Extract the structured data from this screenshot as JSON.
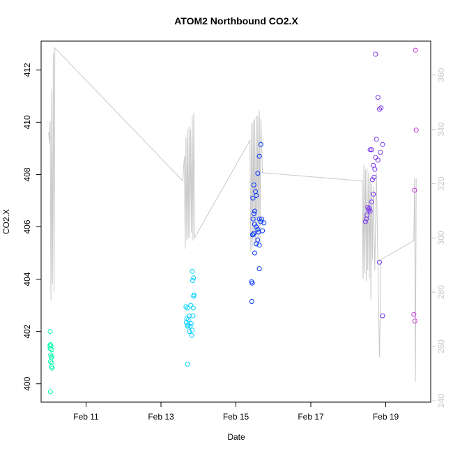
{
  "chart_data": {
    "type": "scatter",
    "title": "ATOM2 Northbound CO2.X",
    "xlabel": "Date",
    "ylabel": "CO2.X",
    "x_ticks": [
      "Feb 11",
      "Feb 13",
      "Feb 15",
      "Feb 17",
      "Feb 19"
    ],
    "y_ticks": [
      "400",
      "402",
      "404",
      "406",
      "408",
      "410",
      "412"
    ],
    "y2_ticks": [
      "240",
      "260",
      "280",
      "300",
      "320",
      "340",
      "360"
    ],
    "xlim": [
      "2013-02-09T19:12",
      "2013-02-20T04:48"
    ],
    "ylim": [
      399.3,
      413.1
    ],
    "y2lim": [
      239.5,
      372.5
    ],
    "right_axis_color": "#c8c8c8",
    "line_color": "#c8c8c8",
    "series": [
      {
        "color": "#00ffaa",
        "points": [
          [
            "2013-02-10T01:00",
            402.0
          ],
          [
            "2013-02-10T00:50",
            401.45
          ],
          [
            "2013-02-10T01:10",
            401.5
          ],
          [
            "2013-02-10T01:30",
            401.45
          ],
          [
            "2013-02-10T01:00",
            401.35
          ],
          [
            "2013-02-10T02:00",
            401.3
          ],
          [
            "2013-02-10T01:20",
            401.1
          ],
          [
            "2013-02-10T02:10",
            401.05
          ],
          [
            "2013-02-10T01:40",
            401.0
          ],
          [
            "2013-02-10T01:10",
            400.85
          ],
          [
            "2013-02-10T02:00",
            400.8
          ],
          [
            "2013-02-10T01:50",
            400.65
          ],
          [
            "2013-02-10T02:20",
            400.6
          ],
          [
            "2013-02-10T01:10",
            399.7
          ]
        ]
      },
      {
        "color": "#00d0ff",
        "points": [
          [
            "2013-02-13T16:00",
            402.95
          ],
          [
            "2013-02-13T17:00",
            402.9
          ],
          [
            "2013-02-13T19:00",
            403.0
          ],
          [
            "2013-02-13T16:30",
            402.5
          ],
          [
            "2013-02-13T17:30",
            402.45
          ],
          [
            "2013-02-13T18:00",
            402.6
          ],
          [
            "2013-02-13T16:10",
            402.35
          ],
          [
            "2013-02-13T17:20",
            402.25
          ],
          [
            "2013-02-13T18:40",
            402.2
          ],
          [
            "2013-02-13T19:20",
            402.3
          ],
          [
            "2013-02-13T17:00",
            402.2
          ],
          [
            "2013-02-13T20:30",
            402.6
          ],
          [
            "2013-02-13T18:10",
            402.0
          ],
          [
            "2013-02-13T19:40",
            401.85
          ],
          [
            "2013-02-13T20:00",
            402.05
          ],
          [
            "2013-02-13T20:40",
            402.9
          ],
          [
            "2013-02-13T20:50",
            403.35
          ],
          [
            "2013-02-13T21:10",
            403.4
          ],
          [
            "2013-02-13T20:20",
            403.95
          ],
          [
            "2013-02-13T20:00",
            404.3
          ],
          [
            "2013-02-13T20:50",
            404.05
          ],
          [
            "2013-02-13T17:00",
            400.75
          ]
        ]
      },
      {
        "color": "#0033ff",
        "points": [
          [
            "2013-02-15T10:00",
            403.9
          ],
          [
            "2013-02-15T10:30",
            403.85
          ],
          [
            "2013-02-15T10:10",
            403.15
          ],
          [
            "2013-02-15T11:00",
            405.7
          ],
          [
            "2013-02-15T11:30",
            405.75
          ],
          [
            "2013-02-15T10:40",
            405.7
          ],
          [
            "2013-02-15T12:00",
            405.0
          ],
          [
            "2013-02-15T13:00",
            405.35
          ],
          [
            "2013-02-15T14:00",
            405.5
          ],
          [
            "2013-02-15T15:00",
            405.3
          ],
          [
            "2013-02-15T11:00",
            406.3
          ],
          [
            "2013-02-15T12:00",
            406.1
          ],
          [
            "2013-02-15T13:00",
            406.0
          ],
          [
            "2013-02-15T14:00",
            405.9
          ],
          [
            "2013-02-15T15:00",
            406.3
          ],
          [
            "2013-02-15T16:00",
            406.2
          ],
          [
            "2013-02-15T17:00",
            405.85
          ],
          [
            "2013-02-15T16:30",
            406.3
          ],
          [
            "2013-02-15T11:30",
            406.5
          ],
          [
            "2013-02-15T12:00",
            406.6
          ],
          [
            "2013-02-15T10:50",
            407.1
          ],
          [
            "2013-02-15T12:30",
            407.35
          ],
          [
            "2013-02-15T13:00",
            407.2
          ],
          [
            "2013-02-15T11:30",
            407.6
          ],
          [
            "2013-02-15T14:00",
            408.05
          ],
          [
            "2013-02-15T15:00",
            408.7
          ],
          [
            "2013-02-15T16:00",
            409.15
          ],
          [
            "2013-02-15T15:00",
            404.4
          ],
          [
            "2013-02-15T14:30",
            405.8
          ],
          [
            "2013-02-15T18:00",
            406.15
          ]
        ]
      },
      {
        "color": "#7733ee",
        "points": [
          [
            "2013-02-18T11:00",
            406.2
          ],
          [
            "2013-02-18T12:00",
            406.45
          ],
          [
            "2013-02-18T13:00",
            406.65
          ],
          [
            "2013-02-18T14:00",
            406.6
          ],
          [
            "2013-02-18T13:30",
            406.7
          ],
          [
            "2013-02-18T12:30",
            406.75
          ],
          [
            "2013-02-18T11:30",
            406.3
          ],
          [
            "2013-02-18T15:00",
            406.95
          ],
          [
            "2013-02-18T16:00",
            407.25
          ],
          [
            "2013-02-18T15:30",
            407.8
          ],
          [
            "2013-02-18T16:30",
            407.9
          ],
          [
            "2013-02-18T17:00",
            408.2
          ],
          [
            "2013-02-18T16:00",
            408.35
          ],
          [
            "2013-02-18T19:00",
            408.55
          ],
          [
            "2013-02-18T17:30",
            408.65
          ],
          [
            "2013-02-18T20:30",
            408.85
          ],
          [
            "2013-02-18T14:00",
            408.95
          ],
          [
            "2013-02-18T15:00",
            408.95
          ],
          [
            "2013-02-18T22:00",
            409.15
          ],
          [
            "2013-02-18T18:00",
            409.35
          ],
          [
            "2013-02-18T20:00",
            410.5
          ],
          [
            "2013-02-18T21:00",
            410.55
          ],
          [
            "2013-02-18T19:00",
            410.95
          ],
          [
            "2013-02-18T17:30",
            412.6
          ],
          [
            "2013-02-18T20:00",
            404.65
          ],
          [
            "2013-02-18T22:00",
            402.6
          ]
        ]
      },
      {
        "color": "#cc33dd",
        "points": [
          [
            "2013-02-19T19:00",
            412.75
          ],
          [
            "2013-02-19T19:30",
            409.7
          ],
          [
            "2013-02-19T18:30",
            407.4
          ],
          [
            "2013-02-19T18:00",
            402.65
          ],
          [
            "2013-02-19T18:40",
            402.4
          ]
        ]
      }
    ],
    "line_y2": [
      [
        "2013-02-10T00:00",
        339
      ],
      [
        "2013-02-10T00:30",
        335
      ],
      [
        "2013-02-10T01:00",
        343
      ],
      [
        "2013-02-10T01:30",
        277
      ],
      [
        "2013-02-10T02:00",
        355
      ],
      [
        "2013-02-10T02:30",
        283
      ],
      [
        "2013-02-10T03:00",
        368
      ],
      [
        "2013-02-10T03:30",
        280
      ],
      [
        "2013-02-10T04:00",
        370
      ],
      [
        "2013-02-13T14:00",
        321
      ],
      [
        "2013-02-13T14:30",
        326
      ],
      [
        "2013-02-13T15:00",
        330
      ],
      [
        "2013-02-13T15:30",
        296
      ],
      [
        "2013-02-13T16:00",
        337
      ],
      [
        "2013-02-13T16:30",
        299
      ],
      [
        "2013-02-13T17:00",
        340
      ],
      [
        "2013-02-13T17:30",
        300
      ],
      [
        "2013-02-13T18:00",
        341
      ],
      [
        "2013-02-13T18:30",
        300
      ],
      [
        "2013-02-13T19:00",
        340
      ],
      [
        "2013-02-13T19:30",
        302
      ],
      [
        "2013-02-13T20:00",
        345
      ],
      [
        "2013-02-13T20:30",
        299
      ],
      [
        "2013-02-13T21:00",
        346
      ],
      [
        "2013-02-13T21:30",
        300
      ],
      [
        "2013-02-15T09:00",
        336
      ],
      [
        "2013-02-15T09:30",
        295
      ],
      [
        "2013-02-15T10:00",
        342
      ],
      [
        "2013-02-15T10:30",
        296
      ],
      [
        "2013-02-15T11:00",
        343
      ],
      [
        "2013-02-15T11:30",
        297
      ],
      [
        "2013-02-15T12:00",
        344
      ],
      [
        "2013-02-15T12:30",
        298
      ],
      [
        "2013-02-15T13:00",
        345
      ],
      [
        "2013-02-15T13:30",
        297
      ],
      [
        "2013-02-15T14:00",
        345
      ],
      [
        "2013-02-15T14:30",
        298
      ],
      [
        "2013-02-15T15:00",
        347
      ],
      [
        "2013-02-15T15:30",
        300
      ],
      [
        "2013-02-15T16:00",
        344
      ],
      [
        "2013-02-15T17:00",
        324
      ],
      [
        "2013-02-18T09:00",
        321
      ],
      [
        "2013-02-18T09:30",
        285
      ],
      [
        "2013-02-18T10:00",
        327
      ],
      [
        "2013-02-18T10:30",
        287
      ],
      [
        "2013-02-18T11:00",
        325
      ],
      [
        "2013-02-18T11:30",
        284
      ],
      [
        "2013-02-18T12:00",
        326
      ],
      [
        "2013-02-18T12:30",
        288
      ],
      [
        "2013-02-18T13:00",
        324
      ],
      [
        "2013-02-18T13:30",
        285
      ],
      [
        "2013-02-18T14:00",
        322
      ],
      [
        "2013-02-18T14:30",
        277
      ],
      [
        "2013-02-18T15:00",
        320
      ],
      [
        "2013-02-18T15:30",
        292
      ],
      [
        "2013-02-18T16:00",
        319
      ],
      [
        "2013-02-18T17:00",
        288
      ],
      [
        "2013-02-18T18:00",
        324
      ],
      [
        "2013-02-18T19:00",
        290
      ],
      [
        "2013-02-18T20:00",
        256
      ],
      [
        "2013-02-18T21:00",
        292
      ],
      [
        "2013-02-19T18:00",
        299
      ],
      [
        "2013-02-19T18:30",
        322
      ],
      [
        "2013-02-19T19:00",
        247
      ],
      [
        "2013-02-19T19:30",
        322
      ]
    ]
  }
}
